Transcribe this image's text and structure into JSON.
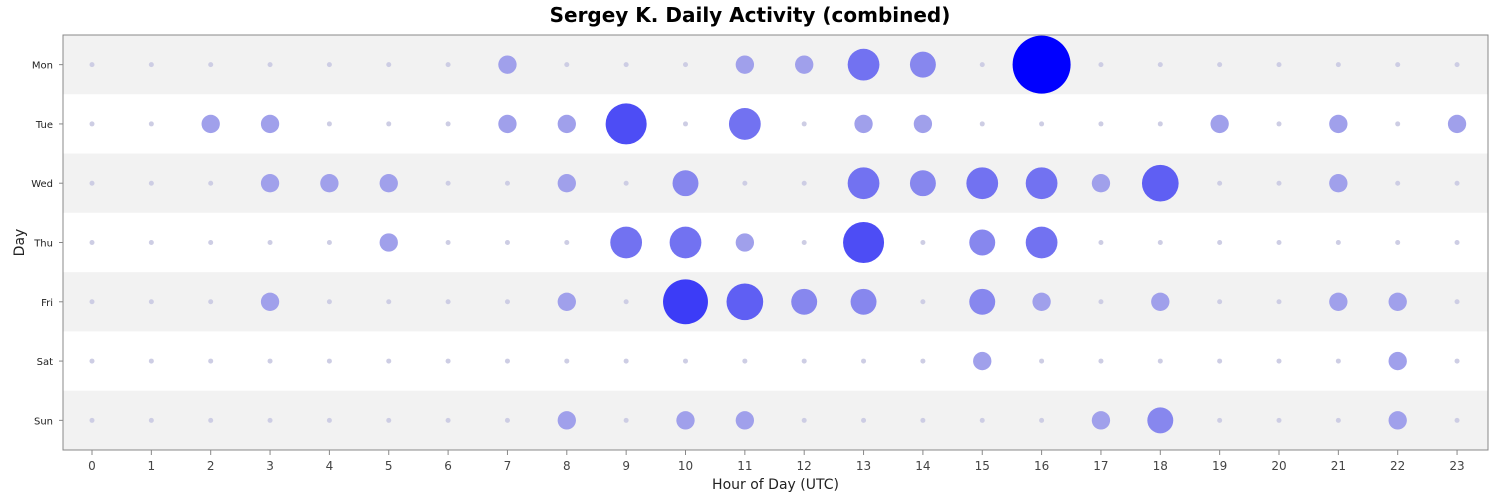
{
  "chart_data": {
    "type": "scatter",
    "title": "Sergey K. Daily Activity (combined)",
    "xlabel": "Hour of Day (UTC)",
    "ylabel": "Day",
    "x_ticks": [
      0,
      1,
      2,
      3,
      4,
      5,
      6,
      7,
      8,
      9,
      10,
      11,
      12,
      13,
      14,
      15,
      16,
      17,
      18,
      19,
      20,
      21,
      22,
      23
    ],
    "y_categories": [
      "Mon",
      "Tue",
      "Wed",
      "Thu",
      "Fri",
      "Sat",
      "Sun"
    ],
    "max_value": 10,
    "colors": {
      "low": "#c8c8e6",
      "high": "#0000ff",
      "band_shaded": "#f2f2f2",
      "band_plain": "#ffffff"
    },
    "values": [
      [
        0,
        0,
        0,
        0,
        0,
        0,
        0,
        1,
        0,
        0,
        0,
        1,
        1,
        3,
        2,
        0,
        10,
        0,
        0,
        0,
        0,
        0,
        0,
        0
      ],
      [
        0,
        0,
        1,
        1,
        0,
        0,
        0,
        1,
        1,
        5,
        0,
        3,
        0,
        1,
        1,
        0,
        0,
        0,
        0,
        1,
        0,
        1,
        0,
        1
      ],
      [
        0,
        0,
        0,
        1,
        1,
        1,
        0,
        0,
        1,
        0,
        2,
        0,
        0,
        3,
        2,
        3,
        3,
        1,
        4,
        0,
        0,
        1,
        0,
        0
      ],
      [
        0,
        0,
        0,
        0,
        0,
        1,
        0,
        0,
        0,
        3,
        3,
        1,
        0,
        5,
        0,
        2,
        3,
        0,
        0,
        0,
        0,
        0,
        0,
        0
      ],
      [
        0,
        0,
        0,
        1,
        0,
        0,
        0,
        0,
        1,
        0,
        6,
        4,
        2,
        2,
        0,
        2,
        1,
        0,
        1,
        0,
        0,
        1,
        1,
        0
      ],
      [
        0,
        0,
        0,
        0,
        0,
        0,
        0,
        0,
        0,
        0,
        0,
        0,
        0,
        0,
        0,
        1,
        0,
        0,
        0,
        0,
        0,
        0,
        1,
        0
      ],
      [
        0,
        0,
        0,
        0,
        0,
        0,
        0,
        0,
        1,
        0,
        1,
        1,
        0,
        0,
        0,
        0,
        0,
        1,
        2,
        0,
        0,
        0,
        1,
        0
      ]
    ]
  }
}
